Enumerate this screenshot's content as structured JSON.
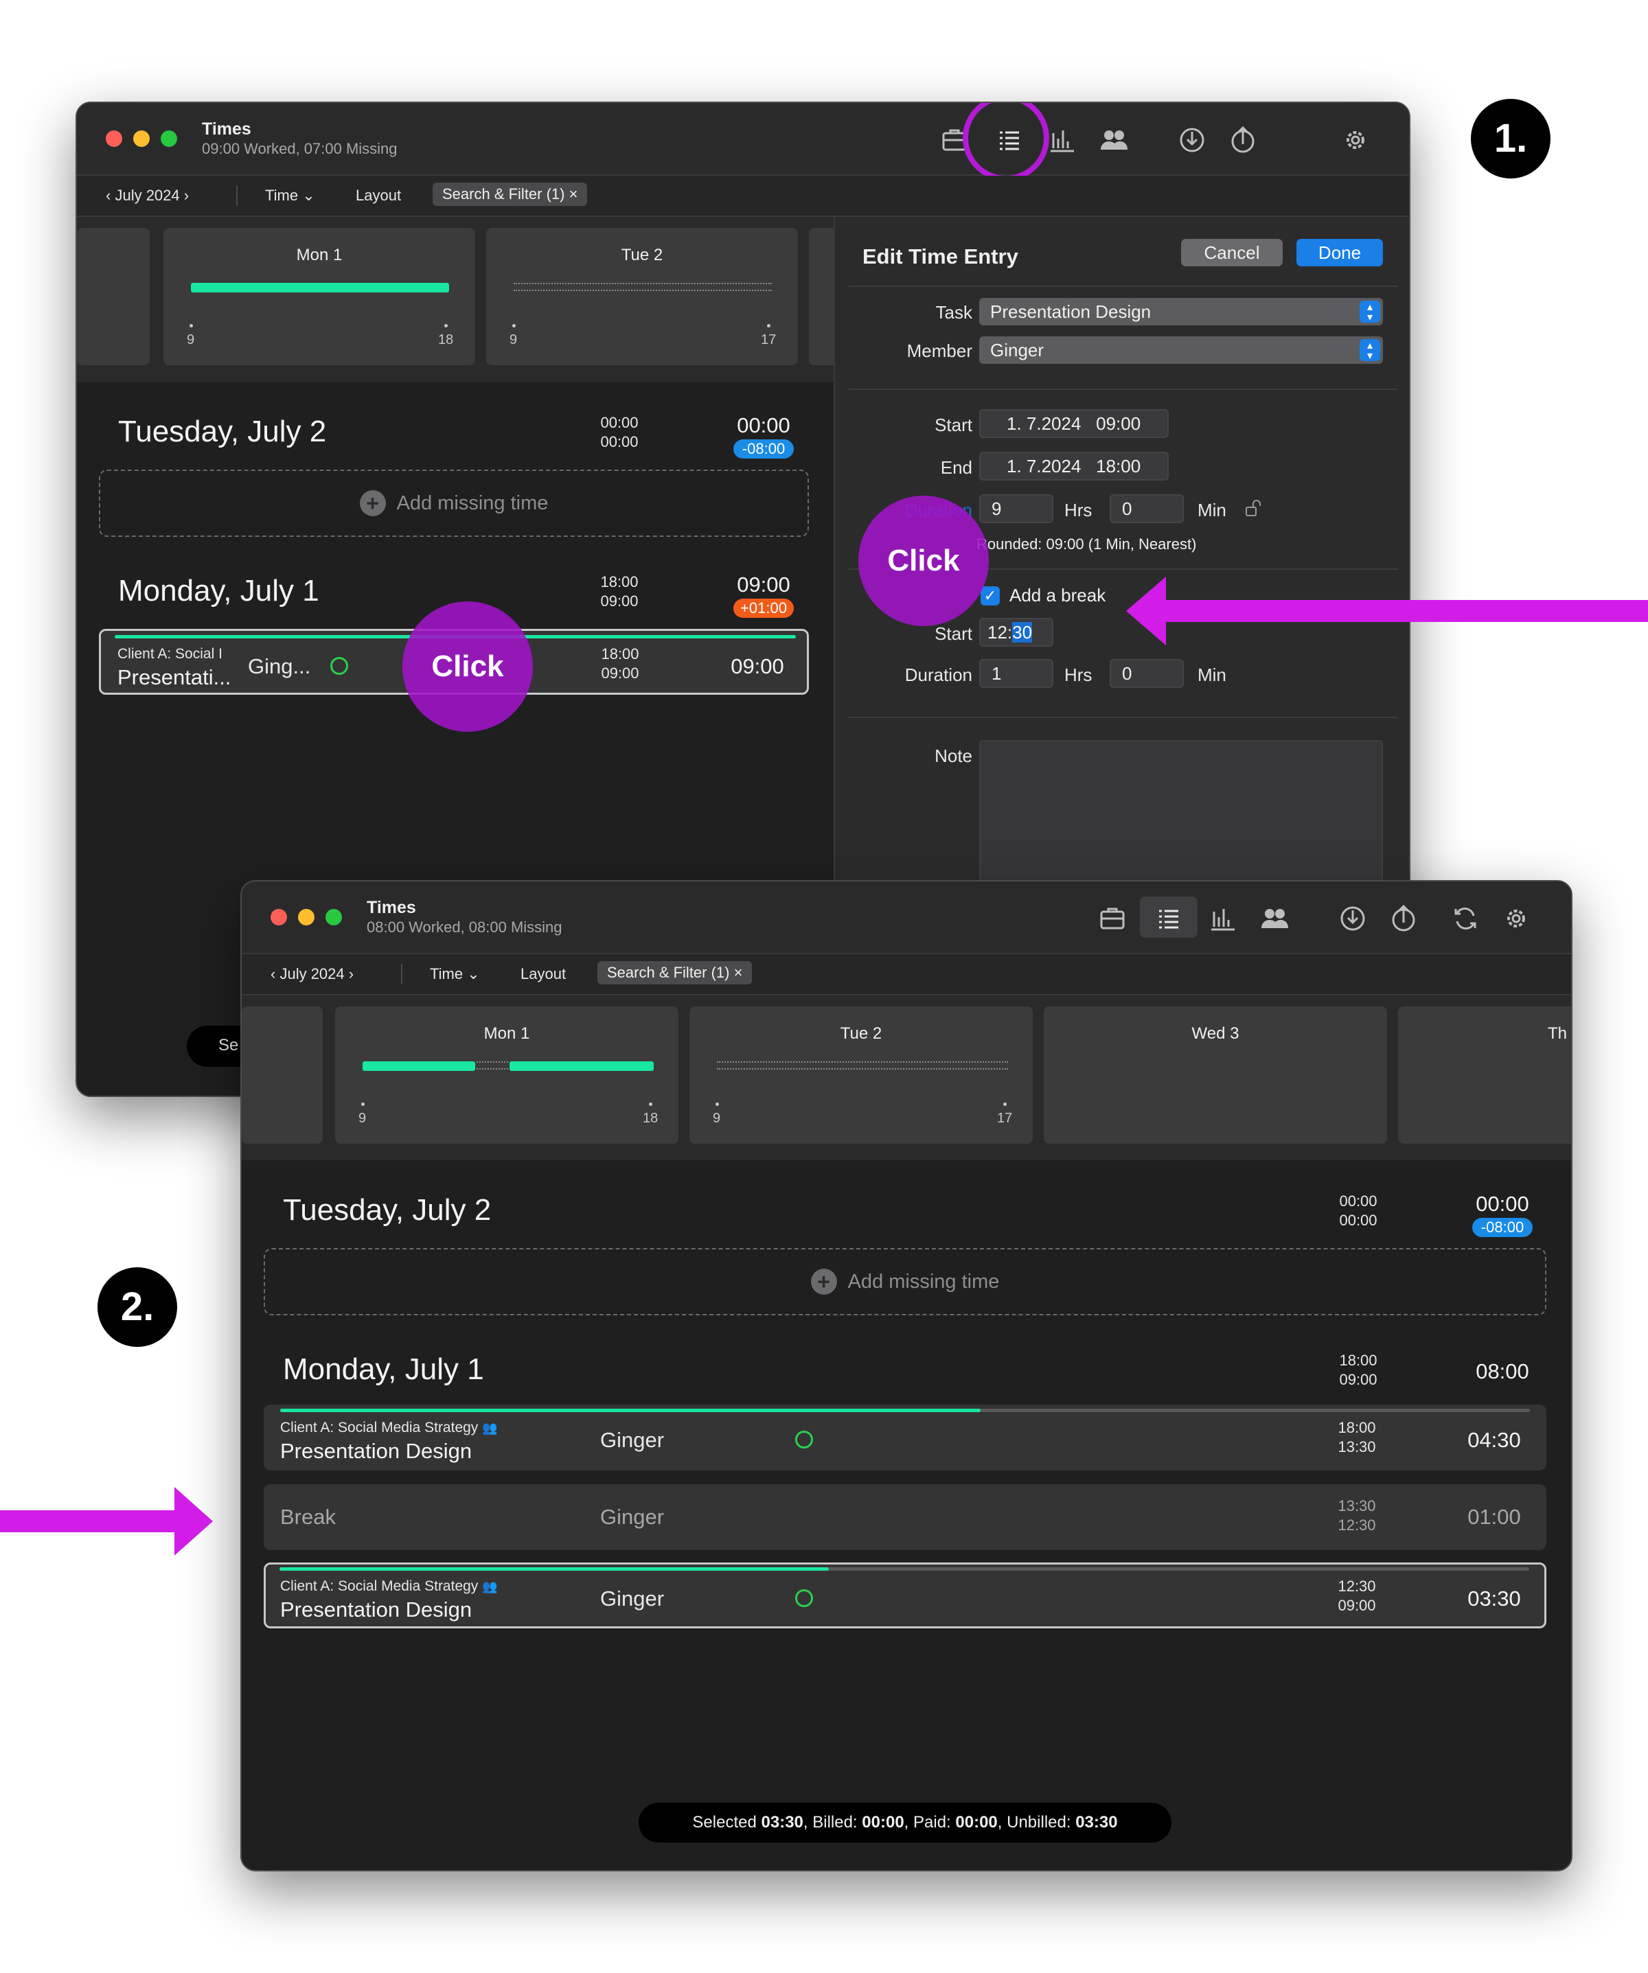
{
  "step_labels": {
    "one": "1.",
    "two": "2."
  },
  "click_label": "Click",
  "colors": {
    "accent": "#1a7fe6",
    "progress": "#19e6a0",
    "annotation": "#b31ad6",
    "missing": "#f25c19"
  },
  "window1": {
    "title": "Times",
    "subtitle": "09:00 Worked, 07:00 Missing",
    "toolbar": {
      "month": "July 2024",
      "time": "Time",
      "layout": "Layout",
      "filter": "Search & Filter (1)"
    },
    "days": [
      {
        "label": "Mon 1",
        "tick_start": "9",
        "tick_end": "18"
      },
      {
        "label": "Tue 2",
        "tick_start": "9",
        "tick_end": "17"
      }
    ],
    "tuesday": {
      "heading": "Tuesday, July 2",
      "end": "00:00",
      "start": "00:00",
      "total": "00:00",
      "diff": "-08:00",
      "add_missing": "Add missing time"
    },
    "monday": {
      "heading": "Monday, July 1",
      "end": "18:00",
      "start": "09:00",
      "total": "09:00",
      "diff": "+01:00"
    },
    "entry": {
      "client": "Client A: Social I",
      "task": "Presentati...",
      "member": "Ging...",
      "end": "18:00",
      "start": "09:00",
      "total": "09:00"
    },
    "bottom_peek": "Se",
    "edit_panel": {
      "title": "Edit Time Entry",
      "cancel": "Cancel",
      "done": "Done",
      "task_label": "Task",
      "task_value": "Presentation Design",
      "member_label": "Member",
      "member_value": "Ginger",
      "start_label": "Start",
      "start_date": "1. 7.2024",
      "start_time": "09:00",
      "end_label": "End",
      "end_date": "1. 7.2024",
      "end_time": "18:00",
      "duration_label": "Duration",
      "duration_hrs": "9",
      "hrs_unit": "Hrs",
      "duration_min": "0",
      "min_unit": "Min",
      "rounded": "Rounded: 09:00 (1 Min, Nearest)",
      "add_break": "Add a break",
      "break_start_label": "Start",
      "break_start_hh": "12:",
      "break_start_mm": "30",
      "break_duration_label": "Duration",
      "break_hrs": "1",
      "break_min": "0",
      "note_label": "Note"
    }
  },
  "window2": {
    "title": "Times",
    "subtitle": "08:00 Worked, 08:00 Missing",
    "toolbar": {
      "month": "July 2024",
      "time": "Time",
      "layout": "Layout",
      "filter": "Search & Filter (1)"
    },
    "days": [
      {
        "label": "Mon 1",
        "tick_start": "9",
        "tick_end": "18"
      },
      {
        "label": "Tue 2",
        "tick_start": "9",
        "tick_end": "17"
      },
      {
        "label": "Wed 3"
      },
      {
        "label": "Th"
      }
    ],
    "tuesday": {
      "heading": "Tuesday, July 2",
      "end": "00:00",
      "start": "00:00",
      "total": "00:00",
      "diff": "-08:00",
      "add_missing": "Add missing time"
    },
    "monday": {
      "heading": "Monday, July 1",
      "end": "18:00",
      "start": "09:00",
      "total": "08:00"
    },
    "entries": [
      {
        "client": "Client A: Social Media Strategy",
        "task": "Presentation Design",
        "member": "Ginger",
        "end": "18:00",
        "start": "13:30",
        "total": "04:30",
        "progress": 0.56
      },
      {
        "task": "Break",
        "member": "Ginger",
        "end": "13:30",
        "start": "12:30",
        "total": "01:00"
      },
      {
        "client": "Client A: Social Media Strategy",
        "task": "Presentation Design",
        "member": "Ginger",
        "end": "12:30",
        "start": "09:00",
        "total": "03:30",
        "progress": 0.44
      }
    ],
    "status": {
      "selected_label": "Selected",
      "selected": "03:30",
      "billed_label": "Billed:",
      "billed": "00:00",
      "paid_label": "Paid:",
      "paid": "00:00",
      "unbilled_label": "Unbilled:",
      "unbilled": "03:30"
    }
  }
}
